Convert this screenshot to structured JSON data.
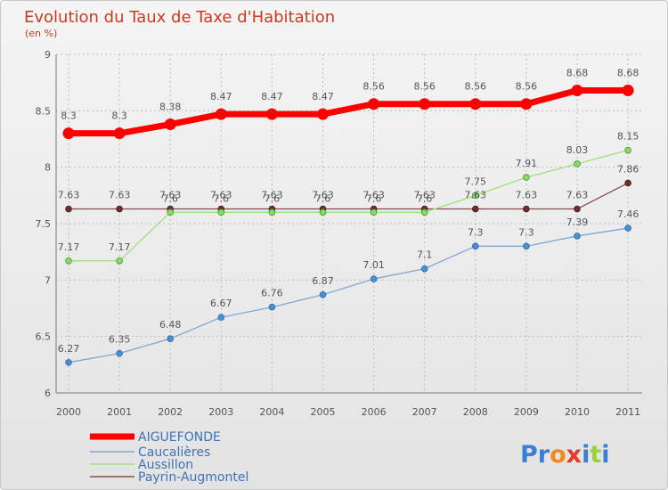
{
  "chart_data": {
    "type": "line",
    "title": "Evolution du Taux de Taxe d'Habitation",
    "subtitle": "(en %)",
    "x": [
      "2000",
      "2001",
      "2002",
      "2003",
      "2004",
      "2005",
      "2006",
      "2007",
      "2008",
      "2009",
      "2010",
      "2011"
    ],
    "ylim": [
      6,
      9
    ],
    "yticks": [
      "6",
      "6.5",
      "7",
      "7.5",
      "8",
      "8.5",
      "9"
    ],
    "grid": true,
    "legend_position": "bottom-left",
    "series": [
      {
        "name": "AIGUEFONDE",
        "color": "#ff0000",
        "values": [
          8.3,
          8.3,
          8.38,
          8.47,
          8.47,
          8.47,
          8.56,
          8.56,
          8.56,
          8.56,
          8.68,
          8.68
        ],
        "labels": [
          "8.3",
          "8.3",
          "8.38",
          "8.47",
          "8.47",
          "8.47",
          "8.56",
          "8.56",
          "8.56",
          "8.56",
          "8.68",
          "8.68"
        ]
      },
      {
        "name": "Caucalières",
        "color": "#7fa6d1",
        "values": [
          6.27,
          6.35,
          6.48,
          6.67,
          6.76,
          6.87,
          7.01,
          7.1,
          7.3,
          7.3,
          7.39,
          7.46
        ],
        "labels": [
          "6.27",
          "6.35",
          "6.48",
          "6.67",
          "6.76",
          "6.87",
          "7.01",
          "7.1",
          "7.3",
          "7.3",
          "7.39",
          "7.46"
        ]
      },
      {
        "name": "Aussillon",
        "color": "#9fe07a",
        "values": [
          7.17,
          7.17,
          7.6,
          7.6,
          7.6,
          7.6,
          7.6,
          7.6,
          7.75,
          7.91,
          8.03,
          8.15
        ],
        "labels": [
          "7.17",
          "7.17",
          "7.6",
          "7.6",
          "7.6",
          "7.6",
          "7.6",
          "7.6",
          "7.75",
          "7.91",
          "8.03",
          "8.15"
        ]
      },
      {
        "name": "Payrin-Augmontel",
        "color": "#8b4a4a",
        "values": [
          7.63,
          7.63,
          7.63,
          7.63,
          7.63,
          7.63,
          7.63,
          7.63,
          7.63,
          7.63,
          7.63,
          7.86
        ],
        "labels": [
          "7.63",
          "7.63",
          "7.63",
          "7.63",
          "7.63",
          "7.63",
          "7.63",
          "7.63",
          "7.63",
          "7.63",
          "7.63",
          "7.86"
        ]
      }
    ]
  },
  "logo": {
    "parts": [
      "Pr",
      "o",
      "x",
      "i",
      "t",
      "i"
    ],
    "colors": [
      "#3b7fd0",
      "#f08a1c",
      "#e8372b",
      "#3b7fd0",
      "#9ccf3c",
      "#3b7fd0"
    ]
  }
}
